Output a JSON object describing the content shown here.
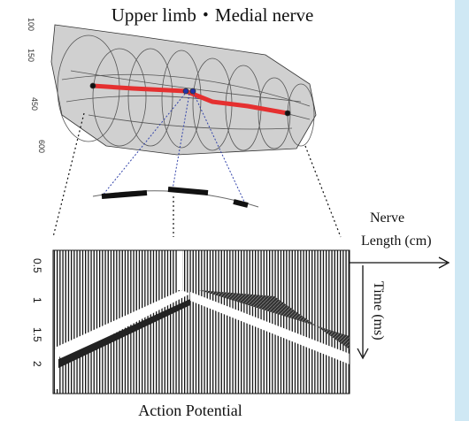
{
  "title": "Upper limb・Medial nerve",
  "mesh_ticks": [
    "100",
    "150",
    "450",
    "600"
  ],
  "plot": {
    "yticks": [
      "0.5",
      "1",
      "1.5",
      "2"
    ],
    "x_label": [
      "Nerve",
      "Length (cm)"
    ],
    "y_label": "Time (ms)",
    "caption": "Action Potential"
  }
}
